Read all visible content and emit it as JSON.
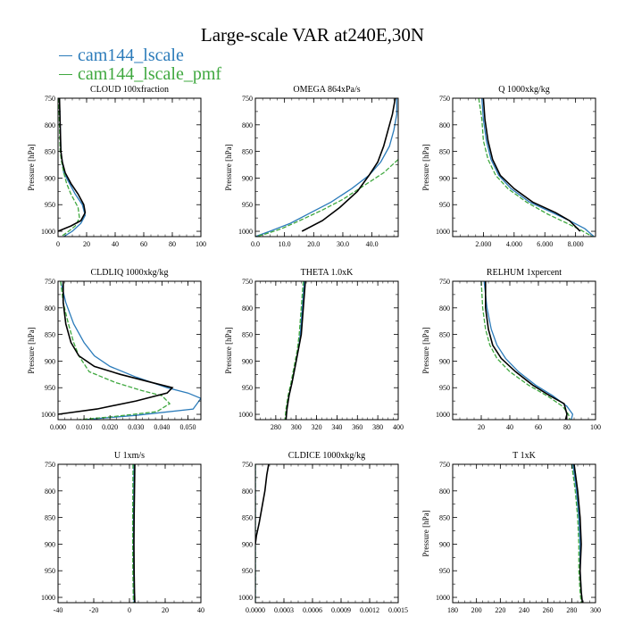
{
  "title": "Large-scale VAR at240E,30N",
  "legend": [
    {
      "label": "cam144_lscale",
      "color": "#2b7bba"
    },
    {
      "label": "cam144_lscale_pmf",
      "color": "#3fa83f"
    }
  ],
  "colors": {
    "obs": "#000000",
    "cam144_lscale": "#2b7bba",
    "cam144_lscale_pmf": "#3fa83f"
  },
  "chart_data": [
    {
      "type": "line",
      "title": "CLOUD 100xfraction",
      "ylabel": "Pressure [hPa]",
      "xlim": [
        0,
        100
      ],
      "ylim": [
        750,
        1010
      ],
      "y_reversed": true,
      "xticks": [
        0,
        20,
        40,
        60,
        80,
        100
      ],
      "xticklabels": [
        "0",
        "20",
        "40",
        "60",
        "80",
        "100"
      ],
      "yticks": [
        750,
        800,
        850,
        900,
        950,
        1000
      ],
      "yticklabels": [
        "750",
        "800",
        "850",
        "900",
        "950",
        "1000"
      ],
      "series": [
        {
          "name": "cam144_lscale",
          "x": [
            1,
            1.5,
            2,
            3,
            4,
            8,
            12,
            17,
            19,
            16,
            10,
            4
          ],
          "y": [
            750,
            800,
            850,
            870,
            890,
            910,
            930,
            950,
            970,
            985,
            1000,
            1010
          ]
        },
        {
          "name": "cam144_lscale_pmf",
          "x": [
            0.5,
            1,
            1.5,
            2.5,
            4,
            6,
            9,
            14,
            15,
            12,
            6,
            2
          ],
          "y": [
            750,
            800,
            850,
            870,
            890,
            910,
            930,
            955,
            975,
            990,
            1003,
            1010
          ]
        },
        {
          "name": "",
          "x": [
            1,
            1.5,
            2,
            3,
            5,
            9,
            14,
            18,
            19,
            16,
            9,
            0
          ],
          "y": [
            750,
            800,
            850,
            870,
            890,
            910,
            930,
            950,
            965,
            980,
            990,
            1000
          ]
        }
      ]
    },
    {
      "type": "line",
      "title": "OMEGA 864xPa/s",
      "ylabel": "Pressure [hPa]",
      "xlim": [
        0,
        49
      ],
      "ylim": [
        750,
        1010
      ],
      "y_reversed": true,
      "xticks": [
        0,
        10,
        20,
        30,
        40
      ],
      "xticklabels": [
        "0.0",
        "10.0",
        "20.0",
        "30.0",
        "40.0"
      ],
      "yticks": [
        750,
        800,
        850,
        900,
        950,
        1000
      ],
      "yticklabels": [
        "750",
        "800",
        "850",
        "900",
        "950",
        "1000"
      ],
      "series": [
        {
          "name": "cam144_lscale",
          "x": [
            48.5,
            48.5,
            47.5,
            46,
            43,
            39,
            33,
            26,
            19,
            12,
            5,
            0
          ],
          "y": [
            750,
            780,
            810,
            840,
            870,
            895,
            920,
            945,
            965,
            985,
            1000,
            1010
          ]
        },
        {
          "name": "cam144_lscale_pmf",
          "x": [
            49,
            44,
            37,
            30,
            23,
            16,
            9,
            3,
            0
          ],
          "y": [
            865,
            890,
            915,
            940,
            960,
            978,
            995,
            1006,
            1010
          ]
        },
        {
          "name": "",
          "x": [
            48,
            47,
            45.5,
            44,
            42,
            39,
            35,
            29,
            23,
            16
          ],
          "y": [
            750,
            780,
            810,
            840,
            870,
            895,
            925,
            955,
            980,
            1000
          ]
        }
      ]
    },
    {
      "type": "line",
      "title": "Q 1000xkg/kg",
      "ylabel": "Pressure [hPa]",
      "xlim": [
        0,
        9.3
      ],
      "ylim": [
        750,
        1010
      ],
      "y_reversed": true,
      "xticks": [
        2,
        4,
        6,
        8
      ],
      "xticklabels": [
        "2.000",
        "4.000",
        "6.000",
        "8.000"
      ],
      "yticks": [
        750,
        800,
        850,
        900,
        950,
        1000
      ],
      "yticklabels": [
        "750",
        "800",
        "850",
        "900",
        "950",
        "1000"
      ],
      "series": [
        {
          "name": "cam144_lscale",
          "x": [
            1.9,
            2.0,
            2.2,
            2.5,
            3.0,
            3.8,
            5.0,
            6.5,
            7.6,
            8.6,
            9.2
          ],
          "y": [
            750,
            790,
            830,
            865,
            895,
            920,
            945,
            965,
            980,
            995,
            1010
          ]
        },
        {
          "name": "cam144_lscale_pmf",
          "x": [
            1.7,
            1.9,
            2.0,
            2.3,
            2.8,
            3.6,
            4.8,
            6.2,
            7.3,
            8.3,
            9.1
          ],
          "y": [
            750,
            790,
            830,
            865,
            895,
            920,
            945,
            968,
            983,
            997,
            1010
          ]
        },
        {
          "name": "",
          "x": [
            2.0,
            2.1,
            2.3,
            2.6,
            3.1,
            4.0,
            5.2,
            6.7,
            7.6,
            8.3
          ],
          "y": [
            750,
            790,
            830,
            865,
            895,
            920,
            945,
            965,
            980,
            1000
          ]
        }
      ]
    },
    {
      "type": "line",
      "title": "CLDLIQ 1000xkg/kg",
      "ylabel": "Pressure [hPa]",
      "xlim": [
        0,
        0.055
      ],
      "ylim": [
        750,
        1010
      ],
      "y_reversed": true,
      "xticks": [
        0,
        0.01,
        0.02,
        0.03,
        0.04,
        0.05
      ],
      "xticklabels": [
        "0.000",
        "0.010",
        "0.020",
        "0.030",
        "0.040",
        "0.050"
      ],
      "yticks": [
        750,
        800,
        850,
        900,
        950,
        1000
      ],
      "yticklabels": [
        "750",
        "800",
        "850",
        "900",
        "950",
        "1000"
      ],
      "series": [
        {
          "name": "cam144_lscale",
          "x": [
            0.001,
            0.003,
            0.006,
            0.01,
            0.014,
            0.02,
            0.03,
            0.042,
            0.05,
            0.055,
            0.052,
            0.03,
            0.01
          ],
          "y": [
            750,
            790,
            830,
            865,
            890,
            910,
            930,
            950,
            960,
            970,
            990,
            1002,
            1010
          ]
        },
        {
          "name": "cam144_lscale_pmf",
          "x": [
            0.001,
            0.002,
            0.004,
            0.006,
            0.008,
            0.012,
            0.022,
            0.032,
            0.04,
            0.043,
            0.038,
            0.02,
            0.008
          ],
          "y": [
            750,
            790,
            830,
            865,
            890,
            920,
            940,
            955,
            965,
            980,
            995,
            1005,
            1010
          ]
        },
        {
          "name": "",
          "x": [
            0.002,
            0.002,
            0.003,
            0.005,
            0.008,
            0.014,
            0.024,
            0.036,
            0.044,
            0.042,
            0.03,
            0.015,
            0.0
          ],
          "y": [
            750,
            790,
            830,
            865,
            890,
            910,
            925,
            940,
            950,
            960,
            975,
            990,
            1000
          ]
        }
      ]
    },
    {
      "type": "line",
      "title": "THETA 1.0xK",
      "ylabel": "Pressure [hPa]",
      "xlim": [
        260,
        400
      ],
      "ylim": [
        750,
        1010
      ],
      "y_reversed": true,
      "xticks": [
        280,
        300,
        320,
        340,
        360,
        380,
        400
      ],
      "xticklabels": [
        "280",
        "300",
        "320",
        "340",
        "360",
        "380",
        "400"
      ],
      "yticks": [
        750,
        800,
        850,
        900,
        950,
        1000
      ],
      "yticklabels": [
        "750",
        "800",
        "850",
        "900",
        "950",
        "1000"
      ],
      "series": [
        {
          "name": "cam144_lscale",
          "x": [
            308,
            306,
            304,
            302,
            299,
            296,
            293,
            291,
            290
          ],
          "y": [
            750,
            800,
            850,
            880,
            910,
            940,
            965,
            990,
            1010
          ]
        },
        {
          "name": "cam144_lscale_pmf",
          "x": [
            307,
            305,
            303,
            301,
            298,
            295,
            292,
            290,
            289
          ],
          "y": [
            750,
            800,
            850,
            880,
            910,
            940,
            965,
            990,
            1010
          ]
        },
        {
          "name": "",
          "x": [
            309,
            307,
            305,
            302,
            299,
            296,
            293,
            291,
            290
          ],
          "y": [
            750,
            800,
            850,
            880,
            910,
            940,
            965,
            990,
            1010
          ]
        }
      ]
    },
    {
      "type": "line",
      "title": "RELHUM 1xpercent",
      "ylabel": "Pressure [hPa]",
      "xlim": [
        0,
        100
      ],
      "ylim": [
        750,
        1010
      ],
      "y_reversed": true,
      "xticks": [
        20,
        40,
        60,
        80,
        100
      ],
      "xticklabels": [
        "20",
        "40",
        "60",
        "80",
        "100"
      ],
      "yticks": [
        750,
        800,
        850,
        900,
        950,
        1000
      ],
      "yticklabels": [
        "750",
        "800",
        "850",
        "900",
        "950",
        "1000"
      ],
      "series": [
        {
          "name": "cam144_lscale",
          "x": [
            22,
            24,
            27,
            31,
            37,
            46,
            58,
            70,
            80,
            84,
            83
          ],
          "y": [
            750,
            800,
            840,
            870,
            895,
            920,
            945,
            965,
            985,
            1000,
            1010
          ]
        },
        {
          "name": "cam144_lscale_pmf",
          "x": [
            20,
            21,
            23,
            26,
            31,
            40,
            53,
            66,
            77,
            81,
            82
          ],
          "y": [
            750,
            800,
            840,
            870,
            895,
            920,
            945,
            965,
            985,
            1000,
            1010
          ]
        },
        {
          "name": "",
          "x": [
            23,
            23,
            25,
            28,
            34,
            44,
            56,
            68,
            78,
            80,
            79
          ],
          "y": [
            750,
            800,
            840,
            870,
            895,
            920,
            945,
            965,
            980,
            1000,
            1010
          ]
        }
      ]
    },
    {
      "type": "line",
      "title": "U 1xm/s",
      "ylabel": "",
      "xlim": [
        -40,
        40
      ],
      "ylim": [
        750,
        1010
      ],
      "y_reversed": true,
      "xticks": [
        -40,
        -20,
        0,
        20,
        40
      ],
      "xticklabels": [
        "-40",
        "-20",
        "0",
        "20",
        "40"
      ],
      "yticks": [
        750,
        800,
        850,
        900,
        950,
        1000
      ],
      "yticklabels": [
        "750",
        "800",
        "850",
        "900",
        "950",
        "1000"
      ],
      "series": [
        {
          "name": "cam144_lscale",
          "x": [
            2.5,
            2.4,
            2.2,
            2.2,
            2.3,
            2.5,
            2.6
          ],
          "y": [
            750,
            800,
            850,
            900,
            950,
            990,
            1010
          ]
        },
        {
          "name": "cam144_lscale_pmf",
          "x": [
            2.0,
            1.9,
            1.8,
            1.8,
            1.9,
            2.1,
            2.2
          ],
          "y": [
            750,
            800,
            850,
            900,
            950,
            990,
            1010
          ]
        },
        {
          "name": "",
          "x": [
            3.0,
            2.8,
            2.6,
            2.5,
            2.6,
            2.8,
            3.0
          ],
          "y": [
            750,
            800,
            850,
            900,
            950,
            990,
            1010
          ]
        }
      ]
    },
    {
      "type": "line",
      "title": "CLDICE 1000xkg/kg",
      "ylabel": "",
      "xlim": [
        0,
        0.0015
      ],
      "ylim": [
        750,
        1010
      ],
      "y_reversed": true,
      "xticks": [
        0,
        0.0003,
        0.0006,
        0.0009,
        0.0012,
        0.0015
      ],
      "xticklabels": [
        "0.0000",
        "0.0003",
        "0.0006",
        "0.0009",
        "0.0012",
        "0.0015"
      ],
      "yticks": [
        750,
        800,
        850,
        900,
        950,
        1000
      ],
      "yticklabels": [
        "750",
        "800",
        "850",
        "900",
        "950",
        "1000"
      ],
      "series": [
        {
          "name": "cam144_lscale",
          "x": [
            0,
            0
          ],
          "y": [
            750,
            1010
          ]
        },
        {
          "name": "cam144_lscale_pmf",
          "x": [
            0,
            0
          ],
          "y": [
            750,
            1010
          ]
        },
        {
          "name": "",
          "x": [
            0.00014,
            0.00012,
            0.0001,
            7e-05,
            4e-05,
            1e-05,
            0
          ],
          "y": [
            750,
            770,
            800,
            830,
            860,
            885,
            900
          ]
        }
      ]
    },
    {
      "type": "line",
      "title": "T 1xK",
      "ylabel": "Pressure [hPa]",
      "xlim": [
        180,
        300
      ],
      "ylim": [
        750,
        1010
      ],
      "y_reversed": true,
      "xticks": [
        180,
        200,
        220,
        240,
        260,
        280,
        300
      ],
      "xticklabels": [
        "180",
        "200",
        "220",
        "240",
        "260",
        "280",
        "300"
      ],
      "yticks": [
        750,
        800,
        850,
        900,
        950,
        1000
      ],
      "yticklabels": [
        "750",
        "800",
        "850",
        "900",
        "950",
        "1000"
      ],
      "series": [
        {
          "name": "cam144_lscale",
          "x": [
            281,
            284,
            286,
            287,
            287,
            288,
            289
          ],
          "y": [
            750,
            800,
            850,
            900,
            950,
            990,
            1010
          ]
        },
        {
          "name": "cam144_lscale_pmf",
          "x": [
            280,
            283,
            285,
            286,
            286,
            287,
            288
          ],
          "y": [
            750,
            800,
            850,
            900,
            950,
            990,
            1010
          ]
        },
        {
          "name": "",
          "x": [
            282,
            285,
            287,
            288,
            287,
            288,
            289
          ],
          "y": [
            750,
            800,
            850,
            900,
            950,
            990,
            1010
          ]
        }
      ]
    }
  ]
}
